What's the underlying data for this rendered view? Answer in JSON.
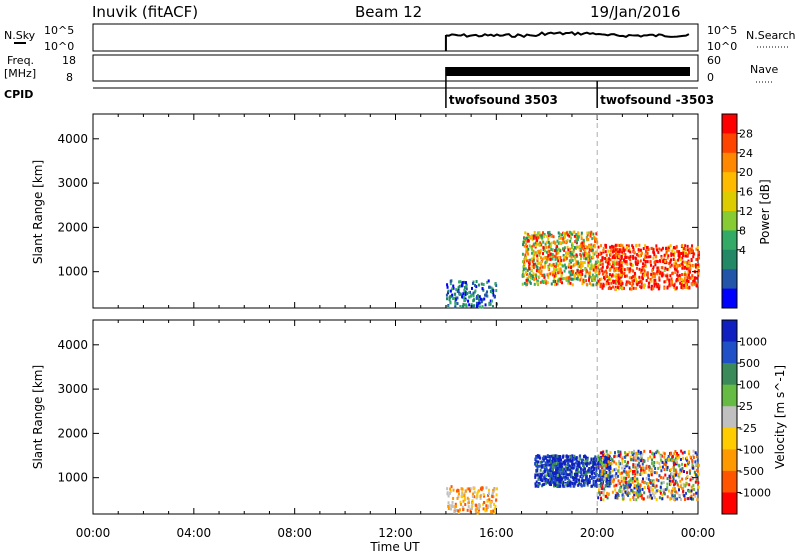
{
  "header": {
    "station": "Inuvik (fitACF)",
    "beam": "Beam 12",
    "date": "19/Jan/2016"
  },
  "strip1": {
    "left_label": "N.Sky",
    "right_label": "N.Search",
    "left_ticks": [
      "10^5",
      "10^0"
    ],
    "right_ticks": [
      "10^5",
      "10^0"
    ]
  },
  "strip2": {
    "left_label_top": "Freq.",
    "left_label_unit": "[MHz]",
    "right_label": "Nave",
    "left_ticks": [
      "18",
      "8"
    ],
    "right_ticks": [
      "60",
      "0"
    ]
  },
  "cpid": {
    "label": "CPID",
    "segments": [
      {
        "start_hour": 14,
        "label": "twofsound 3503"
      },
      {
        "start_hour": 20,
        "label": "twofsound -3503"
      }
    ]
  },
  "chart_data": [
    {
      "type": "heatmap",
      "name": "power-panel",
      "ylabel": "Slant Range [km]",
      "y_ticks": [
        1000,
        2000,
        3000,
        4000
      ],
      "y_range_km": [
        180,
        4560
      ],
      "colorbar": {
        "title": "Power [dB]",
        "ticks": [
          "28",
          "24",
          "20",
          "16",
          "12",
          "8",
          "4"
        ],
        "colors": [
          "#ff0000",
          "#ff4400",
          "#ff8800",
          "#ffbb00",
          "#ddcc00",
          "#88cc33",
          "#33aa66",
          "#228866",
          "#2255aa",
          "#0000ff"
        ]
      },
      "echo_regions": [
        {
          "hours": [
            14.0,
            16.0
          ],
          "range_km": [
            200,
            800
          ],
          "dominant": "low power (blue/green)"
        },
        {
          "hours": [
            17.0,
            20.0
          ],
          "range_km": [
            700,
            1900
          ],
          "dominant": "mixed (orange/red core)"
        },
        {
          "hours": [
            20.0,
            24.0
          ],
          "range_km": [
            600,
            1600
          ],
          "dominant": "strong (red)"
        }
      ]
    },
    {
      "type": "heatmap",
      "name": "velocity-panel",
      "ylabel": "Slant Range [km]",
      "y_ticks": [
        1000,
        2000,
        3000,
        4000
      ],
      "y_range_km": [
        180,
        4560
      ],
      "colorbar": {
        "title": "Velocity [m s^-1]",
        "ticks": [
          "1000",
          "500",
          "100",
          "25",
          "-25",
          "-100",
          "-500",
          "-1000"
        ],
        "colors": [
          "#1020c0",
          "#2050c8",
          "#3a8a5a",
          "#66bb44",
          "#c0c0c0",
          "#ffcc00",
          "#ff9900",
          "#ff5500",
          "#ff0000"
        ]
      },
      "echo_regions": [
        {
          "hours": [
            14.0,
            16.0
          ],
          "range_km": [
            200,
            800
          ],
          "dominant": "small negative (yellow/orange)"
        },
        {
          "hours": [
            17.5,
            20.5
          ],
          "range_km": [
            800,
            1500
          ],
          "dominant": "positive (blue)"
        },
        {
          "hours": [
            20.0,
            24.0
          ],
          "range_km": [
            500,
            1600
          ],
          "dominant": "mixed negative (orange) and positive (green)"
        }
      ]
    }
  ],
  "x_axis": {
    "label": "Time UT",
    "ticks": [
      "00:00",
      "04:00",
      "08:00",
      "12:00",
      "16:00",
      "20:00",
      "00:00"
    ]
  }
}
